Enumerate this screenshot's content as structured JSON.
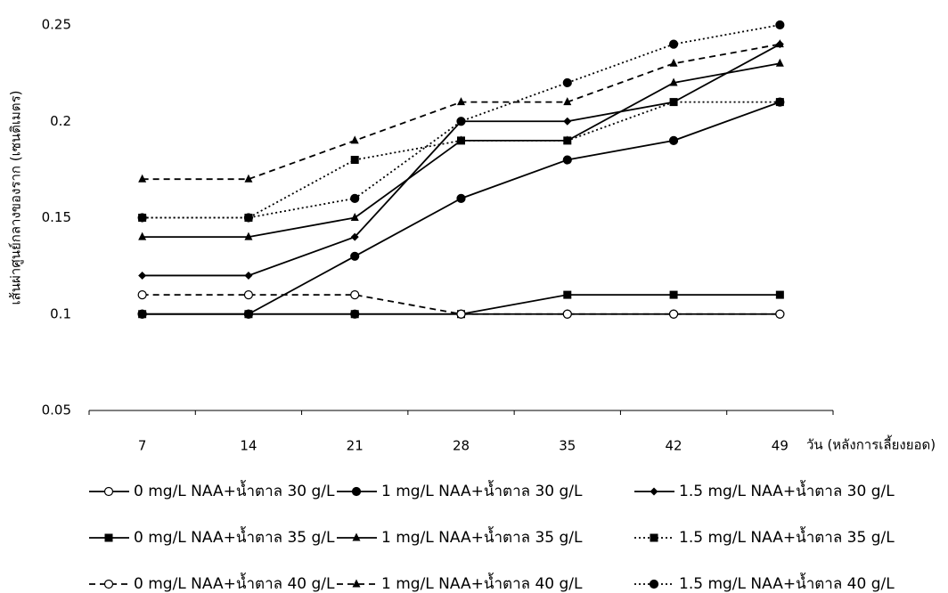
{
  "chart_data": {
    "type": "line",
    "y_label": "เส้นผ่าศูนย์กลางของราก (เซนติเมตร)",
    "x_label": "วัน (หลังการเลี้ยงยอด)",
    "categories": [
      "7",
      "14",
      "21",
      "28",
      "35",
      "42",
      "49"
    ],
    "ylim": [
      0.05,
      0.25
    ],
    "yticks": [
      0.05,
      0.1,
      0.15,
      0.2,
      0.25
    ],
    "series": [
      {
        "name": "0 mg/L NAA+น้ำตาล 30 g/L",
        "color": "#000000",
        "dash": "solid",
        "marker": "circle-open",
        "values": [
          0.1,
          0.1,
          0.1,
          0.1,
          0.1,
          0.1,
          0.1
        ]
      },
      {
        "name": "1 mg/L NAA+น้ำตาล 30 g/L",
        "color": "#000000",
        "dash": "solid",
        "marker": "circle",
        "values": [
          0.1,
          0.1,
          0.13,
          0.16,
          0.18,
          0.19,
          0.21
        ]
      },
      {
        "name": "1.5 mg/L NAA+น้ำตาล 30 g/L",
        "color": "#000000",
        "dash": "solid",
        "marker": "diamond",
        "values": [
          0.12,
          0.12,
          0.14,
          0.2,
          0.2,
          0.21,
          0.24
        ]
      },
      {
        "name": "0 mg/L NAA+น้ำตาล 35 g/L",
        "color": "#000000",
        "dash": "solid",
        "marker": "square",
        "values": [
          0.1,
          0.1,
          0.1,
          0.1,
          0.11,
          0.11,
          0.11
        ]
      },
      {
        "name": "1 mg/L NAA+น้ำตาล 35 g/L",
        "color": "#000000",
        "dash": "solid",
        "marker": "triangle",
        "values": [
          0.14,
          0.14,
          0.15,
          0.19,
          0.19,
          0.22,
          0.23
        ]
      },
      {
        "name": "1.5 mg/L NAA+น้ำตาล 35 g/L",
        "color": "#000000",
        "dash": "dotted",
        "marker": "square",
        "values": [
          0.15,
          0.15,
          0.18,
          0.19,
          0.19,
          0.21,
          0.21
        ]
      },
      {
        "name": "0 mg/L NAA+น้ำตาล 40 g/L",
        "color": "#000000",
        "dash": "dashed",
        "marker": "circle-open",
        "values": [
          0.11,
          0.11,
          0.11,
          0.1,
          0.1,
          0.1,
          0.1
        ]
      },
      {
        "name": "1 mg/L NAA+น้ำตาล 40 g/L",
        "color": "#000000",
        "dash": "dashed",
        "marker": "triangle",
        "values": [
          0.17,
          0.17,
          0.19,
          0.21,
          0.21,
          0.23,
          0.24
        ]
      },
      {
        "name": "1.5 mg/L NAA+น้ำตาล 40 g/L",
        "color": "#000000",
        "dash": "dotted",
        "marker": "circle",
        "values": [
          0.15,
          0.15,
          0.16,
          0.2,
          0.22,
          0.24,
          0.25
        ]
      }
    ]
  }
}
